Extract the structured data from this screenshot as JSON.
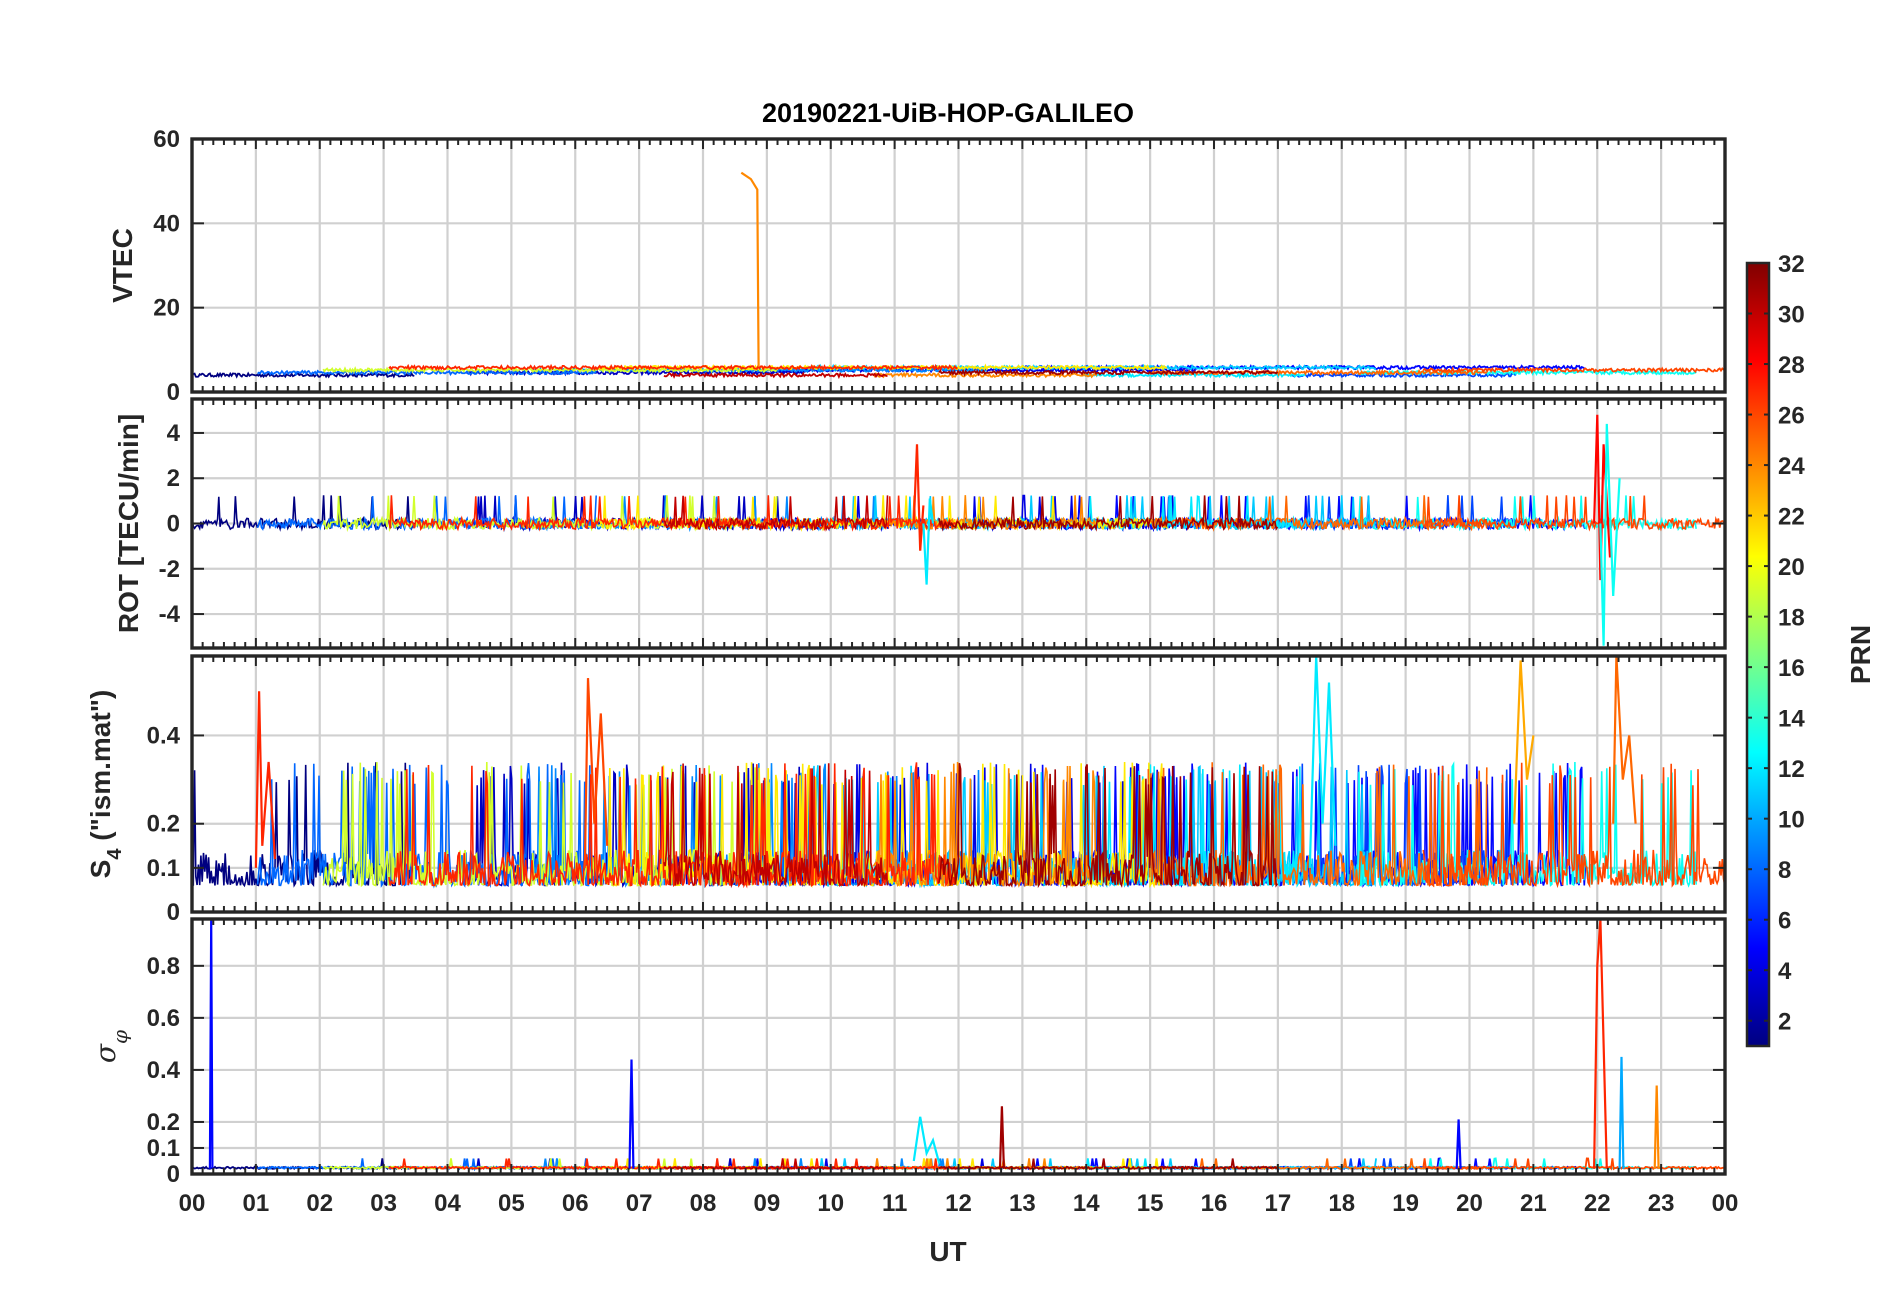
{
  "chart_data": {
    "type": "line",
    "title": "20190221-UiB-HOP-GALILEO",
    "xlabel": "UT",
    "x_ticks": [
      "00",
      "01",
      "02",
      "03",
      "04",
      "05",
      "06",
      "07",
      "08",
      "09",
      "10",
      "11",
      "12",
      "13",
      "14",
      "15",
      "16",
      "17",
      "18",
      "19",
      "20",
      "21",
      "22",
      "23",
      "00"
    ],
    "xlim_hours": [
      0,
      24
    ],
    "grid": true,
    "colormap": "jet",
    "colorbar": {
      "label": "PRN",
      "range": [
        1,
        32
      ],
      "ticks": [
        "2",
        "4",
        "6",
        "8",
        "10",
        "12",
        "14",
        "16",
        "18",
        "20",
        "22",
        "24",
        "26",
        "28",
        "30",
        "32"
      ],
      "placement": "right"
    },
    "panels": [
      {
        "key": "vtec",
        "ylabel": "VTEC",
        "ylim": [
          0,
          60
        ],
        "yticks": [
          0,
          20,
          40,
          60
        ],
        "tick_labels": [
          "0",
          "20",
          "40",
          "60"
        ],
        "baseline": 4,
        "noise": 0.8,
        "highlights": [
          {
            "series": 24,
            "points": [
              [
                8.6,
                52
              ],
              [
                8.75,
                50.5
              ],
              [
                8.85,
                48
              ],
              [
                8.87,
                6
              ]
            ]
          }
        ]
      },
      {
        "key": "rot",
        "ylabel": "ROT [TECU/min]",
        "ylim": [
          -5.5,
          5.5
        ],
        "yticks": [
          -4,
          -2,
          0,
          2,
          4
        ],
        "tick_labels": [
          "-4",
          "-2",
          "0",
          "2",
          "4"
        ],
        "baseline": 0,
        "noise": 0.25,
        "highlights": [
          {
            "series": 27,
            "points": [
              [
                11.3,
                0
              ],
              [
                11.35,
                3.5
              ],
              [
                11.4,
                -1.2
              ],
              [
                11.45,
                0.8
              ]
            ]
          },
          {
            "series": 12,
            "points": [
              [
                11.45,
                0
              ],
              [
                11.5,
                -2.7
              ],
              [
                11.55,
                1.1
              ],
              [
                11.6,
                0
              ]
            ]
          },
          {
            "series": 28,
            "points": [
              [
                21.95,
                0
              ],
              [
                22.0,
                4.8
              ],
              [
                22.05,
                -2.5
              ],
              [
                22.1,
                3.5
              ],
              [
                22.2,
                -1.5
              ]
            ]
          },
          {
            "series": 13,
            "points": [
              [
                22.05,
                0
              ],
              [
                22.1,
                -5.4
              ],
              [
                22.15,
                4.4
              ],
              [
                22.25,
                -3.2
              ],
              [
                22.35,
                2.0
              ]
            ]
          }
        ]
      },
      {
        "key": "s4",
        "ylabel": "S4 (\"ism.mat\")",
        "ylabel_main": "S",
        "ylabel_sub": "4",
        "ylabel_rest": " (\"ism.mat\")",
        "ylim": [
          0,
          0.58
        ],
        "yticks": [
          0,
          0.1,
          0.2,
          0.4
        ],
        "tick_labels": [
          "0",
          "0.1",
          "0.2",
          "0.4"
        ],
        "baseline": 0.06,
        "noise": 0.1,
        "highlights": [
          {
            "series": 27,
            "points": [
              [
                1.0,
                0.1
              ],
              [
                1.05,
                0.5
              ],
              [
                1.1,
                0.15
              ],
              [
                1.2,
                0.34
              ],
              [
                1.3,
                0.12
              ]
            ]
          },
          {
            "series": 26,
            "points": [
              [
                6.15,
                0.1
              ],
              [
                6.2,
                0.53
              ],
              [
                6.3,
                0.2
              ],
              [
                6.4,
                0.45
              ],
              [
                6.5,
                0.15
              ]
            ]
          },
          {
            "series": 12,
            "points": [
              [
                17.5,
                0.1
              ],
              [
                17.6,
                0.58
              ],
              [
                17.7,
                0.2
              ],
              [
                17.8,
                0.52
              ],
              [
                17.9,
                0.15
              ]
            ]
          },
          {
            "series": 23,
            "points": [
              [
                20.7,
                0.2
              ],
              [
                20.8,
                0.57
              ],
              [
                20.9,
                0.3
              ],
              [
                21.0,
                0.4
              ]
            ]
          },
          {
            "series": 25,
            "points": [
              [
                22.25,
                0.2
              ],
              [
                22.3,
                0.58
              ],
              [
                22.4,
                0.3
              ],
              [
                22.5,
                0.4
              ],
              [
                22.6,
                0.2
              ]
            ]
          }
        ]
      },
      {
        "key": "sigma",
        "ylabel": "σφ",
        "ylabel_main": "σ",
        "ylabel_sub": "φ",
        "ylim": [
          0,
          0.98
        ],
        "yticks": [
          0,
          0.1,
          0.2,
          0.4,
          0.6,
          0.8
        ],
        "tick_labels": [
          "0",
          "0.1",
          "0.2",
          "0.4",
          "0.6",
          "0.8"
        ],
        "baseline": 0.02,
        "noise": 0.008,
        "highlights": [
          {
            "series": 5,
            "points": [
              [
                0.28,
                0.02
              ],
              [
                0.3,
                0.98
              ],
              [
                0.32,
                0.02
              ]
            ]
          },
          {
            "series": 5,
            "points": [
              [
                6.85,
                0.02
              ],
              [
                6.88,
                0.44
              ],
              [
                6.91,
                0.02
              ]
            ]
          },
          {
            "series": 31,
            "points": [
              [
                12.65,
                0.02
              ],
              [
                12.68,
                0.26
              ],
              [
                12.71,
                0.02
              ]
            ]
          },
          {
            "series": 12,
            "points": [
              [
                11.3,
                0.05
              ],
              [
                11.4,
                0.22
              ],
              [
                11.5,
                0.08
              ],
              [
                11.6,
                0.13
              ],
              [
                11.7,
                0.04
              ]
            ]
          },
          {
            "series": 5,
            "points": [
              [
                19.8,
                0.02
              ],
              [
                19.83,
                0.21
              ],
              [
                19.86,
                0.02
              ]
            ]
          },
          {
            "series": 27,
            "points": [
              [
                21.95,
                0.02
              ],
              [
                22.0,
                0.8
              ],
              [
                22.05,
                0.98
              ],
              [
                22.1,
                0.5
              ],
              [
                22.15,
                0.02
              ]
            ]
          },
          {
            "series": 10,
            "points": [
              [
                22.35,
                0.02
              ],
              [
                22.38,
                0.45
              ],
              [
                22.41,
                0.02
              ]
            ]
          },
          {
            "series": 24,
            "points": [
              [
                22.9,
                0.02
              ],
              [
                22.93,
                0.34
              ],
              [
                22.96,
                0.02
              ]
            ]
          }
        ]
      }
    ],
    "series_prns": [
      1,
      3,
      4,
      5,
      7,
      8,
      9,
      11,
      12,
      13,
      19,
      21,
      24,
      25,
      26,
      27,
      30,
      31
    ]
  }
}
